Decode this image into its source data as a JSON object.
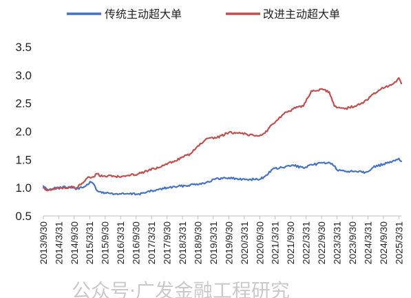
{
  "chart_data": {
    "type": "line",
    "title": "",
    "xlabel": "",
    "ylabel": "",
    "ylim": [
      0.5,
      3.5
    ],
    "yticks": [
      "0.5",
      "1.0",
      "1.5",
      "2.0",
      "2.5",
      "3.0",
      "3.5"
    ],
    "xlim": [
      "2013-09-30",
      "2025-04-30"
    ],
    "xticks": [
      "2013/9/30",
      "2014/3/31",
      "2014/9/30",
      "2015/3/31",
      "2015/9/30",
      "2016/3/31",
      "2016/9/30",
      "2017/3/31",
      "2017/9/30",
      "2018/3/31",
      "2018/9/30",
      "2019/3/31",
      "2019/9/30",
      "2020/3/31",
      "2020/9/30",
      "2021/3/31",
      "2021/9/30",
      "2022/3/31",
      "2022/9/30",
      "2023/3/31",
      "2023/9/30",
      "2024/3/31",
      "2024/9/30",
      "2025/3/31"
    ],
    "grid": false,
    "legend_position": "top",
    "series": [
      {
        "name": "传统主动超大单",
        "color": "#4472c4",
        "points": [
          [
            "2013-09-30",
            1.03
          ],
          [
            "2013-11-15",
            0.97
          ],
          [
            "2014-01-31",
            0.99
          ],
          [
            "2014-04-30",
            1.0
          ],
          [
            "2014-07-31",
            1.02
          ],
          [
            "2014-10-31",
            0.98
          ],
          [
            "2014-12-31",
            1.0
          ],
          [
            "2015-02-28",
            1.06
          ],
          [
            "2015-04-15",
            1.1
          ],
          [
            "2015-05-15",
            1.07
          ],
          [
            "2015-06-15",
            0.97
          ],
          [
            "2015-07-15",
            0.93
          ],
          [
            "2015-09-30",
            0.91
          ],
          [
            "2016-01-31",
            0.89
          ],
          [
            "2016-06-30",
            0.89
          ],
          [
            "2016-10-31",
            0.89
          ],
          [
            "2017-01-31",
            0.92
          ],
          [
            "2017-04-30",
            0.95
          ],
          [
            "2017-09-30",
            1.0
          ],
          [
            "2018-01-31",
            1.02
          ],
          [
            "2018-06-30",
            1.05
          ],
          [
            "2018-12-31",
            1.09
          ],
          [
            "2019-04-15",
            1.15
          ],
          [
            "2019-09-30",
            1.18
          ],
          [
            "2020-01-31",
            1.15
          ],
          [
            "2020-05-31",
            1.15
          ],
          [
            "2020-09-30",
            1.15
          ],
          [
            "2020-11-30",
            1.2
          ],
          [
            "2021-02-28",
            1.33
          ],
          [
            "2021-06-30",
            1.36
          ],
          [
            "2021-10-31",
            1.4
          ],
          [
            "2022-02-28",
            1.35
          ],
          [
            "2022-06-30",
            1.41
          ],
          [
            "2022-10-31",
            1.45
          ],
          [
            "2023-01-31",
            1.43
          ],
          [
            "2023-04-15",
            1.3
          ],
          [
            "2023-09-30",
            1.29
          ],
          [
            "2023-12-31",
            1.3
          ],
          [
            "2024-02-28",
            1.27
          ],
          [
            "2024-05-31",
            1.36
          ],
          [
            "2024-09-30",
            1.42
          ],
          [
            "2024-12-31",
            1.45
          ],
          [
            "2025-02-28",
            1.5
          ],
          [
            "2025-03-31",
            1.52
          ],
          [
            "2025-04-30",
            1.47
          ]
        ]
      },
      {
        "name": "改进主动超大单",
        "color": "#c0504d",
        "points": [
          [
            "2013-09-30",
            1.0
          ],
          [
            "2013-11-15",
            0.95
          ],
          [
            "2014-01-31",
            0.97
          ],
          [
            "2014-04-30",
            1.0
          ],
          [
            "2014-07-31",
            1.01
          ],
          [
            "2014-10-31",
            1.0
          ],
          [
            "2014-12-31",
            1.08
          ],
          [
            "2015-02-28",
            1.17
          ],
          [
            "2015-05-31",
            1.2
          ],
          [
            "2015-06-15",
            1.25
          ],
          [
            "2015-08-31",
            1.2
          ],
          [
            "2015-10-31",
            1.21
          ],
          [
            "2016-01-31",
            1.2
          ],
          [
            "2016-06-30",
            1.22
          ],
          [
            "2016-10-31",
            1.25
          ],
          [
            "2017-01-31",
            1.3
          ],
          [
            "2017-06-30",
            1.36
          ],
          [
            "2017-12-31",
            1.48
          ],
          [
            "2018-06-30",
            1.6
          ],
          [
            "2018-12-31",
            1.86
          ],
          [
            "2019-04-30",
            1.88
          ],
          [
            "2019-09-30",
            1.98
          ],
          [
            "2020-01-31",
            1.98
          ],
          [
            "2020-04-30",
            1.95
          ],
          [
            "2020-08-31",
            1.92
          ],
          [
            "2020-11-30",
            1.97
          ],
          [
            "2021-02-28",
            2.13
          ],
          [
            "2021-06-30",
            2.3
          ],
          [
            "2021-10-31",
            2.4
          ],
          [
            "2022-02-28",
            2.45
          ],
          [
            "2022-05-31",
            2.72
          ],
          [
            "2022-10-31",
            2.74
          ],
          [
            "2022-12-31",
            2.7
          ],
          [
            "2023-02-28",
            2.45
          ],
          [
            "2023-06-30",
            2.4
          ],
          [
            "2023-10-31",
            2.45
          ],
          [
            "2024-01-31",
            2.5
          ],
          [
            "2024-04-30",
            2.62
          ],
          [
            "2024-08-31",
            2.75
          ],
          [
            "2024-12-31",
            2.82
          ],
          [
            "2025-02-28",
            2.88
          ],
          [
            "2025-03-31",
            2.95
          ],
          [
            "2025-04-30",
            2.85
          ]
        ]
      }
    ]
  },
  "watermark": "公众号·广发金融工程研究"
}
